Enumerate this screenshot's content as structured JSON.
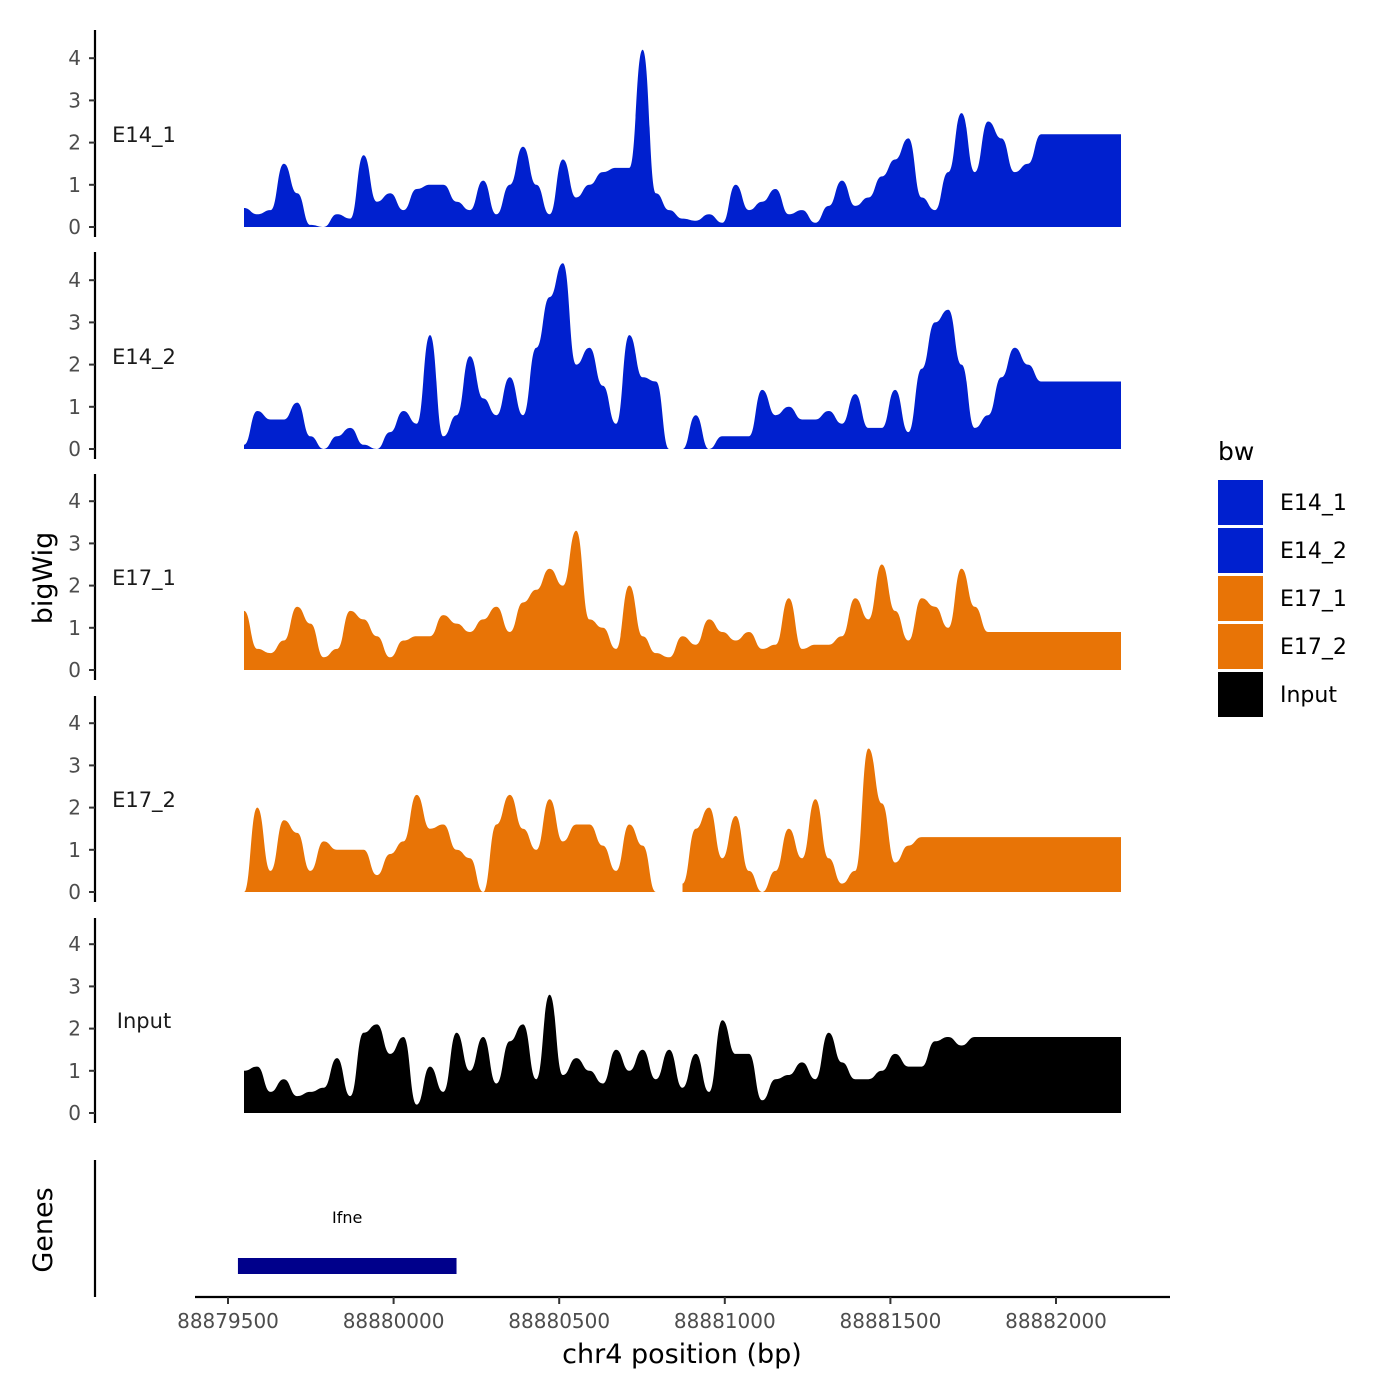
{
  "chart_data": {
    "type": "area",
    "xlabel": "chr4 position (bp)",
    "ylabel": "bigWig",
    "genes_label": "Genes",
    "x_range": [
      88879400,
      88882300
    ],
    "x_ticks": [
      88879500,
      88880000,
      88880500,
      88881000,
      88881500,
      88882000
    ],
    "x_tick_labels": [
      "88879500",
      "88880000",
      "88880500",
      "88881000",
      "88881500",
      "88882000"
    ],
    "y_range": [
      0,
      4.5
    ],
    "y_ticks": [
      0,
      1,
      2,
      3,
      4
    ],
    "y_tick_labels": [
      "0",
      "1",
      "2",
      "3",
      "4"
    ],
    "legend": {
      "title": "bw",
      "items": [
        {
          "label": "E14_1",
          "color": "#0020CF"
        },
        {
          "label": "E14_2",
          "color": "#0020CF"
        },
        {
          "label": "E17_1",
          "color": "#E87406"
        },
        {
          "label": "E17_2",
          "color": "#E87406"
        },
        {
          "label": "Input",
          "color": "#000000"
        }
      ]
    },
    "x": [
      88879540,
      88879580,
      88879620,
      88879660,
      88879700,
      88879740,
      88879780,
      88879820,
      88879860,
      88879900,
      88879940,
      88879980,
      88880020,
      88880060,
      88880100,
      88880140,
      88880180,
      88880220,
      88880260,
      88880300,
      88880340,
      88880380,
      88880420,
      88880460,
      88880500,
      88880540,
      88880580,
      88880620,
      88880660,
      88880700,
      88880740,
      88880780,
      88880820,
      88880860,
      88880900,
      88880940,
      88880980,
      88881020,
      88881060,
      88881100,
      88881140,
      88881180,
      88881220,
      88881260,
      88881300,
      88881340,
      88881380,
      88881420,
      88881460,
      88881500,
      88881540,
      88881580,
      88881620,
      88881660,
      88881700,
      88881740,
      88881780,
      88881820,
      88881860,
      88881900,
      88881940,
      88881980,
      88882020,
      88882060,
      88882100,
      88882140,
      88882180
    ],
    "series": [
      {
        "name": "E14_1",
        "color": "#0020CF",
        "values": [
          0.45,
          0.3,
          0.4,
          1.5,
          0.8,
          0.05,
          0.0,
          0.3,
          0.2,
          1.7,
          0.6,
          0.8,
          0.4,
          0.9,
          1.0,
          1.0,
          0.6,
          0.4,
          1.1,
          0.3,
          1.0,
          1.9,
          1.0,
          0.3,
          1.6,
          0.7,
          1.0,
          1.3,
          1.4,
          1.4,
          4.2,
          0.8,
          0.4,
          0.2,
          0.15,
          0.3,
          0.1,
          1.0,
          0.4,
          0.6,
          0.9,
          0.3,
          0.4,
          0.1,
          0.5,
          1.1,
          0.5,
          0.7,
          1.2,
          1.6,
          2.1,
          0.7,
          0.4,
          1.3,
          2.7,
          1.3,
          2.5,
          2.1,
          1.3,
          1.5,
          2.2,
          2.2,
          2.2,
          2.2,
          2.2,
          2.2,
          2.2
        ],
        "custom_end": true
      },
      {
        "name": "E14_2",
        "color": "#0020CF",
        "values": [
          0.1,
          0.9,
          0.7,
          0.7,
          1.1,
          0.3,
          0.0,
          0.3,
          0.5,
          0.1,
          0.0,
          0.4,
          0.9,
          0.6,
          2.7,
          0.3,
          0.8,
          2.2,
          1.2,
          0.8,
          1.7,
          0.8,
          2.4,
          3.6,
          4.4,
          2.0,
          2.4,
          1.5,
          0.6,
          2.7,
          1.7,
          1.6,
          0.0,
          0.0,
          0.8,
          0.0,
          0.3,
          0.3,
          0.3,
          1.4,
          0.8,
          1.0,
          0.7,
          0.7,
          0.9,
          0.6,
          1.3,
          0.5,
          0.5,
          1.4,
          0.4,
          1.9,
          3.0,
          3.3,
          2.0,
          0.5,
          0.8,
          1.7,
          2.4,
          2.0,
          1.6,
          1.6,
          1.6,
          1.6,
          1.6,
          1.6,
          1.6
        ],
        "custom_end": true
      },
      {
        "name": "E17_1",
        "color": "#E87406",
        "values": [
          1.4,
          0.5,
          0.4,
          0.7,
          1.5,
          1.1,
          0.3,
          0.5,
          1.4,
          1.2,
          0.8,
          0.3,
          0.7,
          0.8,
          0.8,
          1.3,
          1.1,
          0.9,
          1.2,
          1.5,
          0.9,
          1.6,
          1.9,
          2.4,
          2.0,
          3.3,
          1.2,
          1.0,
          0.5,
          2.0,
          0.8,
          0.4,
          0.3,
          0.8,
          0.6,
          1.2,
          0.9,
          0.7,
          0.9,
          0.5,
          0.6,
          1.7,
          0.5,
          0.6,
          0.6,
          0.8,
          1.7,
          1.2,
          2.5,
          1.4,
          0.7,
          1.7,
          1.5,
          1.0,
          2.4,
          1.5,
          0.9,
          0.9,
          0.9,
          0.9,
          0.9,
          0.9,
          0.9,
          0.9,
          0.9,
          0.9,
          0.9
        ],
        "custom_end": true
      },
      {
        "name": "E17_2",
        "color": "#E87406",
        "values": [
          0.0,
          2.0,
          0.5,
          1.7,
          1.4,
          0.5,
          1.2,
          1.0,
          1.0,
          1.0,
          0.4,
          0.9,
          1.2,
          2.3,
          1.5,
          1.6,
          1.0,
          0.8,
          0.0,
          1.6,
          2.3,
          1.5,
          1.0,
          2.2,
          1.2,
          1.6,
          1.6,
          1.1,
          0.5,
          1.6,
          1.1,
          0.0,
          null,
          0.2,
          1.5,
          2.0,
          0.8,
          1.8,
          0.5,
          0.0,
          0.5,
          1.5,
          0.8,
          2.2,
          0.8,
          0.2,
          0.5,
          3.4,
          2.1,
          0.7,
          1.1,
          1.3,
          1.3,
          1.3,
          1.3,
          1.3,
          1.3,
          1.3,
          1.3,
          1.3,
          1.3,
          1.3,
          1.3,
          1.3,
          1.3,
          1.3,
          1.3
        ],
        "custom_end": true
      },
      {
        "name": "Input",
        "color": "#000000",
        "values": [
          1.0,
          1.1,
          0.5,
          0.8,
          0.4,
          0.5,
          0.6,
          1.3,
          0.4,
          1.9,
          2.1,
          1.4,
          1.8,
          0.2,
          1.1,
          0.5,
          1.9,
          1.0,
          1.8,
          0.7,
          1.7,
          2.1,
          0.8,
          2.8,
          0.9,
          1.3,
          1.0,
          0.7,
          1.5,
          1.0,
          1.5,
          0.8,
          1.5,
          0.6,
          1.4,
          0.5,
          2.2,
          1.4,
          1.4,
          0.3,
          0.8,
          0.9,
          1.2,
          0.8,
          1.9,
          1.2,
          0.8,
          0.8,
          1.0,
          1.4,
          1.1,
          1.1,
          1.7,
          1.8,
          1.6,
          1.8,
          1.8,
          1.8,
          1.8,
          1.8,
          1.8,
          1.8,
          1.8,
          1.8,
          1.8,
          1.8,
          1.8
        ],
        "custom_end": true
      }
    ],
    "genes": [
      {
        "name": "Ifne",
        "start": 88879530,
        "end": 88880190,
        "color": "#00008B"
      }
    ]
  }
}
